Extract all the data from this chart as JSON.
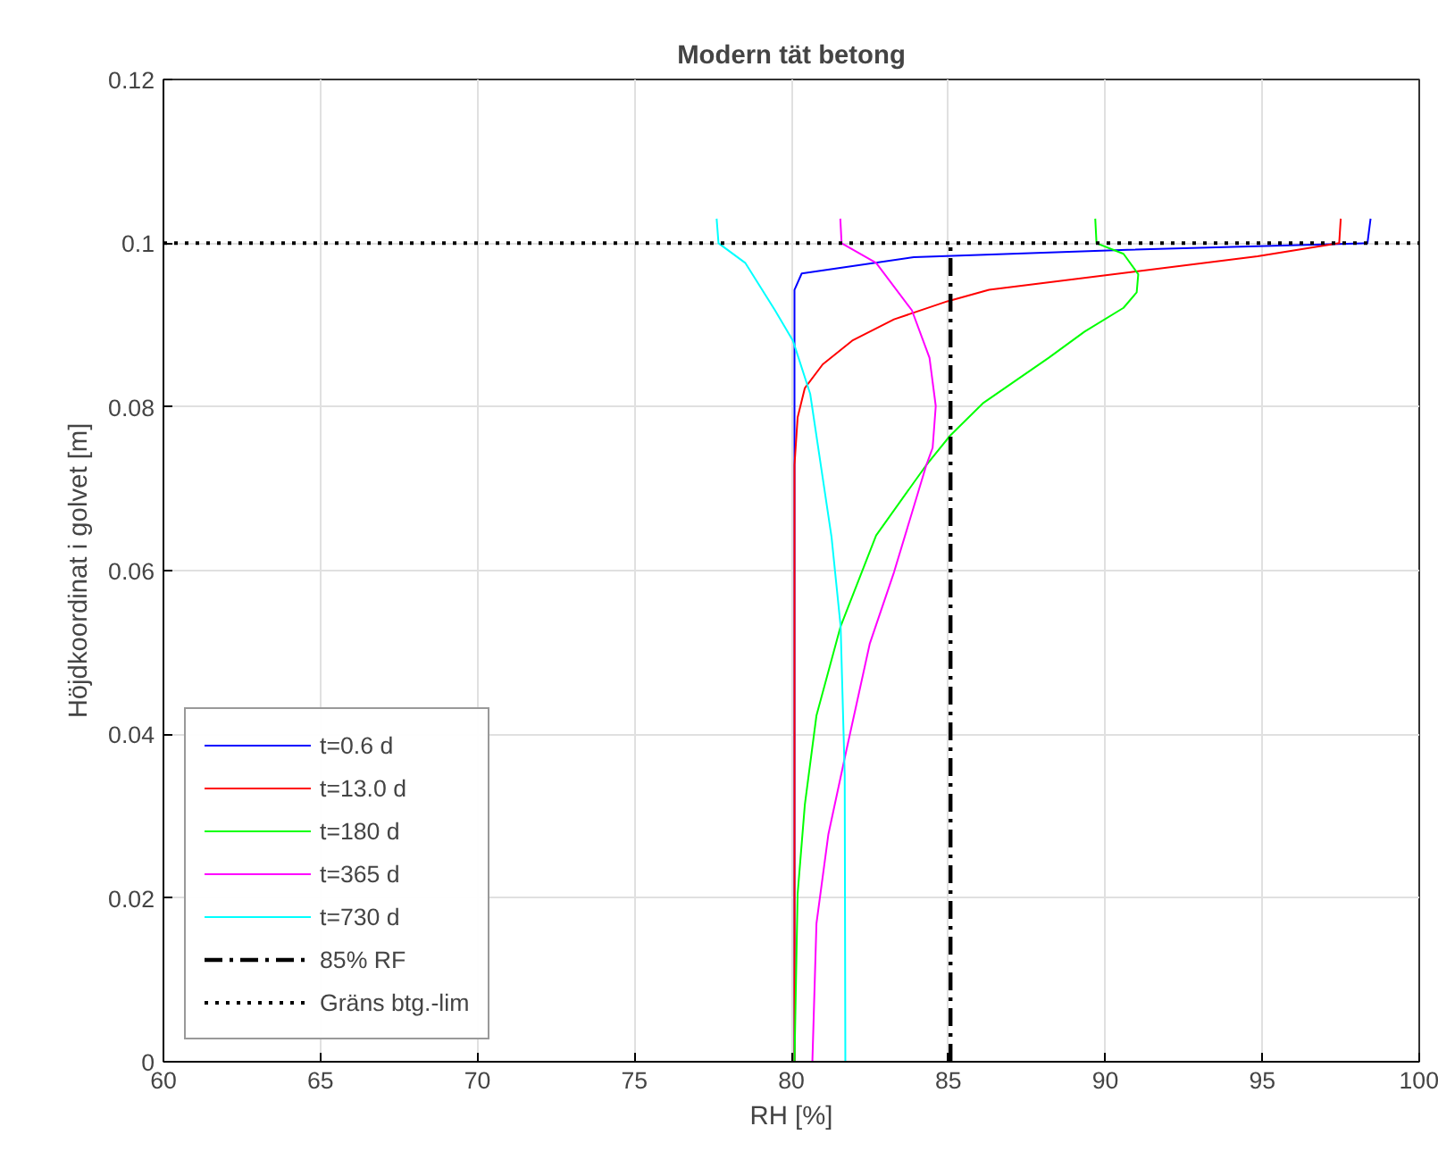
{
  "chart_data": {
    "type": "line",
    "title": "Modern tät betong",
    "xlabel": "RH [%]",
    "ylabel": "Höjdkoordinat i golvet [m]",
    "xlim": [
      60,
      100
    ],
    "ylim": [
      0,
      0.12
    ],
    "xticks": [
      60,
      65,
      70,
      75,
      80,
      85,
      90,
      95,
      100
    ],
    "yticks": [
      0,
      0.02,
      0.04,
      0.06,
      0.08,
      0.1,
      0.12
    ],
    "grid": true,
    "legend": "bottom left",
    "line_style": "solid",
    "series": [
      {
        "name": "t=0.6 d",
        "color": "#0000ff",
        "x": [
          98.45,
          98.35,
          90.7,
          83.9,
          80.33,
          80.1,
          80.1
        ],
        "values": [
          0.103,
          0.1,
          0.0992,
          0.0983,
          0.0963,
          0.0943,
          0
        ]
      },
      {
        "name": "t=13.0 d",
        "color": "#ff0000",
        "x": [
          97.5,
          97.45,
          94.85,
          86.3,
          84.97,
          83.27,
          81.94,
          81.0,
          80.43,
          80.2,
          80.1,
          80.1
        ],
        "values": [
          0.103,
          0.1,
          0.0984,
          0.0943,
          0.0929,
          0.0907,
          0.0881,
          0.0852,
          0.0823,
          0.0787,
          0.0729,
          0
        ]
      },
      {
        "name": "t=180 d",
        "color": "#00ff00",
        "x": [
          89.68,
          89.72,
          90.58,
          91.05,
          91.0,
          90.58,
          89.34,
          88.2,
          86.12,
          85.06,
          84.3,
          82.7,
          81.57,
          80.8,
          80.43,
          80.2,
          80.1
        ],
        "values": [
          0.103,
          0.1,
          0.0987,
          0.0962,
          0.094,
          0.0921,
          0.0892,
          0.086,
          0.0805,
          0.0765,
          0.0729,
          0.0643,
          0.0532,
          0.0423,
          0.0314,
          0.0205,
          0
        ]
      },
      {
        "name": "t=365 d",
        "color": "#ff00ff",
        "x": [
          81.56,
          81.6,
          82.7,
          83.84,
          84.4,
          84.6,
          84.5,
          84.3,
          83.27,
          82.5,
          81.75,
          81.18,
          80.8,
          80.67
        ],
        "values": [
          0.103,
          0.1,
          0.0976,
          0.0918,
          0.086,
          0.0801,
          0.075,
          0.0729,
          0.0598,
          0.0511,
          0.038,
          0.0278,
          0.0169,
          0
        ]
      },
      {
        "name": "t=730 d",
        "color": "#00ffff",
        "x": [
          77.62,
          77.68,
          78.53,
          79.48,
          80.05,
          80.6,
          81.28,
          81.57,
          81.7,
          81.72
        ],
        "values": [
          0.103,
          0.1,
          0.0976,
          0.0918,
          0.0881,
          0.0816,
          0.0641,
          0.0532,
          0.035,
          0
        ]
      },
      {
        "name": "85% RF",
        "color": "#000000",
        "line_style": "dashdot",
        "x": [
          85.07,
          85.07
        ],
        "values": [
          0,
          0.1
        ]
      },
      {
        "name": "Gräns btg.-lim",
        "color": "#000000",
        "line_style": "dotted",
        "x": [
          60,
          100
        ],
        "values": [
          0.1,
          0.1
        ]
      }
    ]
  }
}
